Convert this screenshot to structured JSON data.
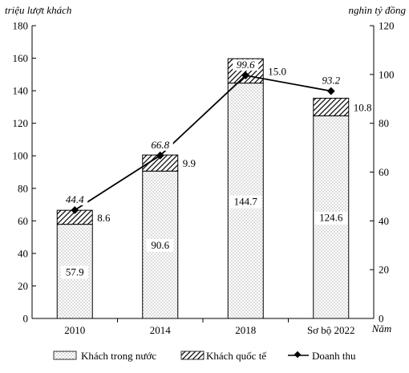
{
  "chart_data": {
    "type": "bar",
    "stacked": true,
    "categories": [
      "2010",
      "2014",
      "2018",
      "Sơ bộ 2022"
    ],
    "series": [
      {
        "name": "Khách trong nước",
        "type": "bar",
        "axis": "left",
        "pattern": "dots",
        "values": [
          57.9,
          90.6,
          144.7,
          124.6
        ]
      },
      {
        "name": "Khách quốc tế",
        "type": "bar",
        "axis": "left",
        "pattern": "diagonal-hatch",
        "values": [
          8.6,
          9.9,
          15.0,
          10.8
        ]
      },
      {
        "name": "Doanh thu",
        "type": "line",
        "axis": "right",
        "marker": "diamond",
        "values": [
          44.4,
          66.8,
          99.6,
          93.2
        ]
      }
    ],
    "ylabel": "triệu lượt khách",
    "y2label": "nghìn tỷ đồng",
    "xlabel": "Năm",
    "ylim": [
      0,
      180
    ],
    "y2lim": [
      0,
      120
    ],
    "yticks": [
      0,
      20,
      40,
      60,
      80,
      100,
      120,
      140,
      160,
      180
    ],
    "y2ticks": [
      0,
      20,
      40,
      60,
      80,
      100,
      120
    ],
    "legend_position": "bottom",
    "grid": false,
    "colors": {
      "bar_fill": "#ffffff",
      "ink": "#000000"
    }
  }
}
